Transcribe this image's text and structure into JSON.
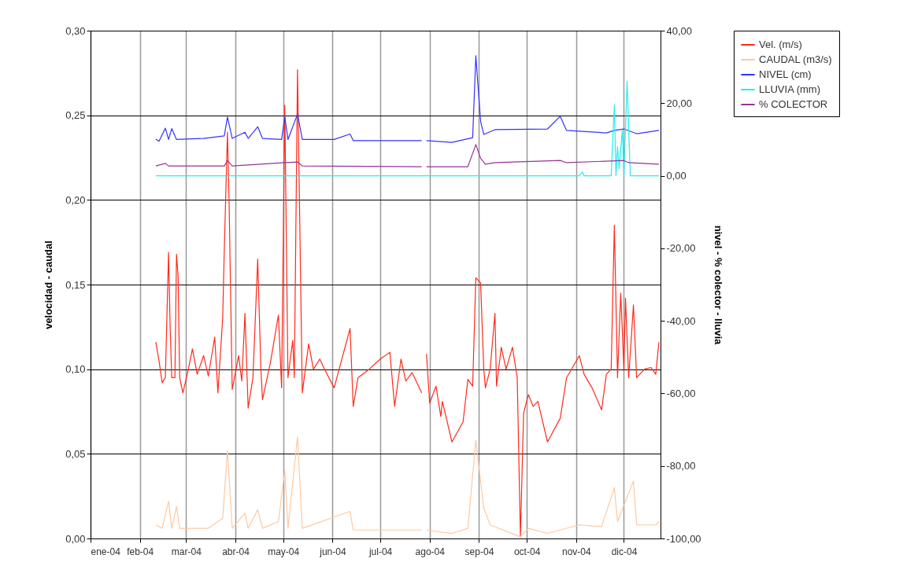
{
  "chart_data": {
    "type": "line",
    "ylabel": "velocidad - caudal",
    "y2label": "nivel - % colector - lluvia",
    "grid": true,
    "legend": "right",
    "xlim": [
      "2004-01-01",
      "2004-12-24"
    ],
    "xticks": [
      {
        "value": "2004-01-01",
        "label": "ene-04"
      },
      {
        "value": "2004-02-01",
        "label": "feb-04"
      },
      {
        "value": "2004-03-01",
        "label": "mar-04"
      },
      {
        "value": "2004-04-01",
        "label": "abr-04"
      },
      {
        "value": "2004-05-01",
        "label": "may-04"
      },
      {
        "value": "2004-06-01",
        "label": "jun-04"
      },
      {
        "value": "2004-07-01",
        "label": "jul-04"
      },
      {
        "value": "2004-08-01",
        "label": "ago-04"
      },
      {
        "value": "2004-09-01",
        "label": "sep-04"
      },
      {
        "value": "2004-10-01",
        "label": "oct-04"
      },
      {
        "value": "2004-11-01",
        "label": "nov-04"
      },
      {
        "value": "2004-12-01",
        "label": "dic-04"
      }
    ],
    "ylim": [
      0,
      0.3
    ],
    "yticks": [
      {
        "value": 0,
        "label": "0,00"
      },
      {
        "value": 0.05,
        "label": "0,05"
      },
      {
        "value": 0.1,
        "label": "0,10"
      },
      {
        "value": 0.15,
        "label": "0,15"
      },
      {
        "value": 0.2,
        "label": "0,20"
      },
      {
        "value": 0.25,
        "label": "0,25"
      },
      {
        "value": 0.3,
        "label": "0,30"
      }
    ],
    "y2lim": [
      -100,
      40
    ],
    "y2ticks": [
      {
        "value": -100,
        "label": "-100,00"
      },
      {
        "value": -80,
        "label": "-80,00"
      },
      {
        "value": -60,
        "label": "-60,00"
      },
      {
        "value": -40,
        "label": "-40,00"
      },
      {
        "value": -20,
        "label": "-20,00"
      },
      {
        "value": 0,
        "label": "0,00"
      },
      {
        "value": 20,
        "label": "20,00"
      },
      {
        "value": 40,
        "label": "40,00"
      }
    ],
    "series": [
      {
        "name": "Vel.  (m/s)",
        "color": "#ff2a1a",
        "x": [
          "2004-02-11",
          "2004-02-13",
          "2004-02-15",
          "2004-02-17",
          "2004-02-19",
          "2004-02-20",
          "2004-02-21",
          "2004-02-23",
          "2004-02-24",
          "2004-02-25",
          "2004-02-26",
          "2004-02-28",
          "2004-03-02",
          "2004-03-05",
          "2004-03-08",
          "2004-03-12",
          "2004-03-15",
          "2004-03-19",
          "2004-03-21",
          "2004-03-24",
          "2004-03-25",
          "2004-03-27",
          "2004-03-28",
          "2004-03-30",
          "2004-04-03",
          "2004-04-05",
          "2004-04-07",
          "2004-04-09",
          "2004-04-12",
          "2004-04-15",
          "2004-04-17",
          "2004-04-18",
          "2004-04-23",
          "2004-04-28",
          "2004-04-30",
          "2004-05-02",
          "2004-05-04",
          "2004-05-07",
          "2004-05-08",
          "2004-05-10",
          "2004-05-13",
          "2004-05-17",
          "2004-05-20",
          "2004-05-24",
          "2004-05-27",
          "2004-06-02",
          "2004-06-06",
          "2004-06-12",
          "2004-06-14",
          "2004-06-17",
          "2004-06-24",
          "2004-07-01",
          "2004-07-07",
          "2004-07-10",
          "2004-07-14",
          "2004-07-17",
          "2004-07-21",
          "2004-07-27",
          "2004-07-28",
          "2004-07-30",
          "2004-08-01",
          "2004-08-05",
          "2004-08-08",
          "2004-08-09",
          "2004-08-15",
          "2004-08-22",
          "2004-08-25",
          "2004-08-28",
          "2004-08-30",
          "2004-09-02",
          "2004-09-04",
          "2004-09-05",
          "2004-09-08",
          "2004-09-11",
          "2004-09-12",
          "2004-09-15",
          "2004-09-18",
          "2004-09-22",
          "2004-09-25",
          "2004-09-27",
          "2004-09-29",
          "2004-10-02",
          "2004-10-05",
          "2004-10-08",
          "2004-10-14",
          "2004-10-22",
          "2004-10-26",
          "2004-11-03",
          "2004-11-06",
          "2004-11-11",
          "2004-11-17",
          "2004-11-20",
          "2004-11-23",
          "2004-11-25",
          "2004-11-27",
          "2004-11-29",
          "2004-12-01",
          "2004-12-02",
          "2004-12-04",
          "2004-12-07",
          "2004-12-09",
          "2004-12-14",
          "2004-12-18",
          "2004-12-21",
          "2004-12-23"
        ],
        "values": [
          0.116,
          0.105,
          0.092,
          0.095,
          0.169,
          0.125,
          0.095,
          0.095,
          0.168,
          0.155,
          0.095,
          0.086,
          0.098,
          0.112,
          0.097,
          0.108,
          0.096,
          0.119,
          0.086,
          0.13,
          0.17,
          0.24,
          0.2,
          0.088,
          0.108,
          0.093,
          0.133,
          0.077,
          0.095,
          0.165,
          0.1,
          0.082,
          0.104,
          0.132,
          0.089,
          0.256,
          0.095,
          0.117,
          0.095,
          0.277,
          0.086,
          0.115,
          0.1,
          0.106,
          0.1,
          0.089,
          0.103,
          0.124,
          0.078,
          0.095,
          0.1,
          0.106,
          0.11,
          0.078,
          0.106,
          0.093,
          0.098,
          0.086,
          null,
          0.109,
          0.08,
          0.09,
          0.072,
          0.081,
          0.057,
          0.069,
          0.094,
          0.09,
          0.154,
          0.151,
          0.1,
          0.089,
          0.1,
          0.133,
          0.09,
          0.113,
          0.1,
          0.113,
          0.095,
          0.001,
          0.074,
          0.085,
          0.078,
          0.081,
          0.057,
          0.071,
          0.095,
          0.108,
          0.097,
          0.089,
          0.076,
          0.097,
          0.1,
          0.185,
          0.095,
          0.145,
          0.1,
          0.142,
          0.095,
          0.138,
          0.095,
          0.1,
          0.101,
          0.097,
          0.116
        ]
      },
      {
        "name": "CAUDAL (m3/s)",
        "color": "#ffc8a0",
        "x": [
          "2004-02-11",
          "2004-02-15",
          "2004-02-19",
          "2004-02-21",
          "2004-02-24",
          "2004-02-26",
          "2004-03-15",
          "2004-03-24",
          "2004-03-27",
          "2004-03-30",
          "2004-04-07",
          "2004-04-09",
          "2004-04-15",
          "2004-04-18",
          "2004-04-28",
          "2004-05-02",
          "2004-05-04",
          "2004-05-10",
          "2004-05-13",
          "2004-06-12",
          "2004-06-14",
          "2004-07-27",
          "2004-07-28",
          "2004-07-30",
          "2004-08-15",
          "2004-08-25",
          "2004-08-30",
          "2004-09-04",
          "2004-09-08",
          "2004-09-27",
          "2004-10-02",
          "2004-10-14",
          "2004-11-03",
          "2004-11-17",
          "2004-11-25",
          "2004-11-27",
          "2004-12-07",
          "2004-12-09",
          "2004-12-21",
          "2004-12-23"
        ],
        "values": [
          0.008,
          0.006,
          0.022,
          0.006,
          0.019,
          0.006,
          0.006,
          0.012,
          0.052,
          0.006,
          0.015,
          0.006,
          0.017,
          0.006,
          0.01,
          0.04,
          0.006,
          0.06,
          0.006,
          0.016,
          0.005,
          0.005,
          null,
          0.005,
          0.003,
          0.006,
          0.058,
          0.018,
          0.008,
          0.001,
          0.006,
          0.003,
          0.008,
          0.007,
          0.03,
          0.01,
          0.034,
          0.008,
          0.008,
          0.01
        ]
      },
      {
        "name": "NIVEL (cm)",
        "color": "#3333ff",
        "axis": "y2",
        "x": [
          "2004-02-11",
          "2004-02-13",
          "2004-02-17",
          "2004-02-19",
          "2004-02-21",
          "2004-02-24",
          "2004-03-12",
          "2004-03-25",
          "2004-03-27",
          "2004-03-30",
          "2004-04-07",
          "2004-04-09",
          "2004-04-15",
          "2004-04-18",
          "2004-04-30",
          "2004-05-02",
          "2004-05-04",
          "2004-05-10",
          "2004-05-13",
          "2004-06-02",
          "2004-06-12",
          "2004-06-14",
          "2004-07-27",
          "2004-07-28",
          "2004-07-30",
          "2004-08-15",
          "2004-08-28",
          "2004-08-30",
          "2004-09-02",
          "2004-09-04",
          "2004-09-11",
          "2004-10-14",
          "2004-10-22",
          "2004-10-26",
          "2004-11-20",
          "2004-11-25",
          "2004-12-01",
          "2004-12-09",
          "2004-12-23"
        ],
        "values": [
          10.1,
          9.5,
          13.1,
          10,
          13,
          10,
          10.3,
          11,
          16.2,
          10.3,
          12,
          10.3,
          13.5,
          10.3,
          10,
          16.2,
          10,
          17,
          10,
          10,
          11.5,
          9.7,
          9.7,
          null,
          9.7,
          9.2,
          10.5,
          33.1,
          15,
          11.4,
          12.7,
          12.9,
          16.4,
          12.5,
          11.8,
          12.5,
          12.9,
          11.6,
          12.5
        ]
      },
      {
        "name": "LLUVIA (mm)",
        "color": "#22eef0",
        "axis": "y2",
        "x": [
          "2004-02-11",
          "2004-11-03",
          "2004-11-05",
          "2004-11-06",
          "2004-11-23",
          "2004-11-25",
          "2004-11-26",
          "2004-11-27",
          "2004-11-28",
          "2004-11-30",
          "2004-12-01",
          "2004-12-03",
          "2004-12-05",
          "2004-12-23"
        ],
        "values": [
          0,
          0,
          1,
          0,
          0,
          19.6,
          0,
          8,
          2,
          12.5,
          0,
          26.1,
          0,
          0
        ]
      },
      {
        "name": "% COLECTOR",
        "color": "#993399",
        "axis": "y2",
        "x": [
          "2004-02-11",
          "2004-02-17",
          "2004-02-19",
          "2004-03-25",
          "2004-03-27",
          "2004-03-30",
          "2004-05-02",
          "2004-05-10",
          "2004-05-13",
          "2004-07-27",
          "2004-07-28",
          "2004-07-30",
          "2004-08-25",
          "2004-08-30",
          "2004-09-02",
          "2004-09-05",
          "2004-09-11",
          "2004-10-22",
          "2004-10-26",
          "2004-12-01",
          "2004-12-04",
          "2004-12-23"
        ],
        "values": [
          2.7,
          3.4,
          2.7,
          2.7,
          4.2,
          2.7,
          3.6,
          3.8,
          2.7,
          2.5,
          null,
          2.5,
          2.5,
          8.6,
          4.8,
          3.2,
          3.6,
          4.2,
          3.6,
          4.2,
          3.6,
          3.2
        ]
      }
    ]
  }
}
